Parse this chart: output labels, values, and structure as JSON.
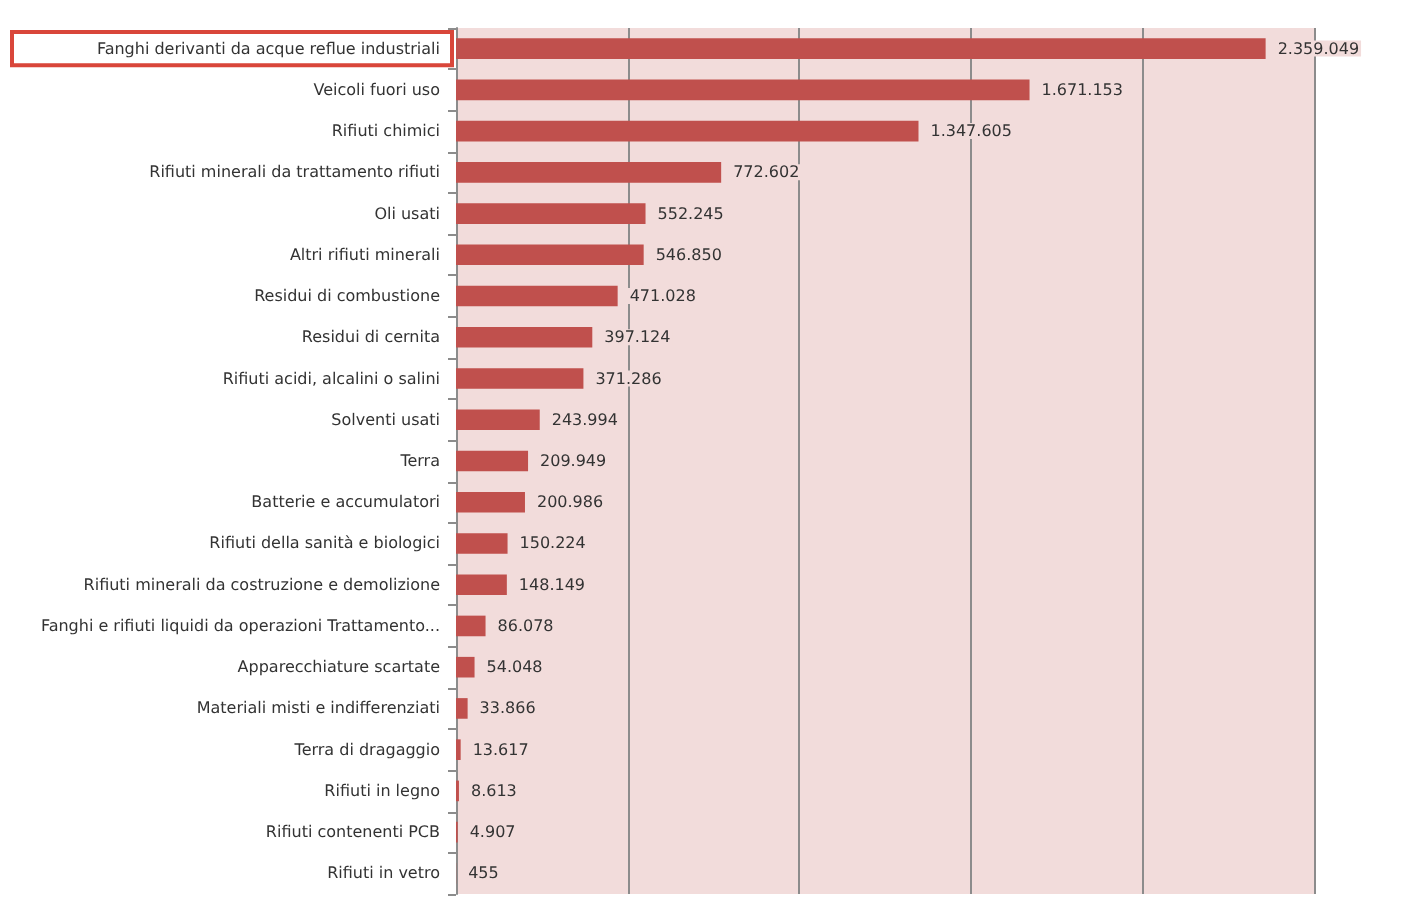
{
  "chart_data": {
    "type": "bar",
    "orientation": "horizontal",
    "categories": [
      "Fanghi derivanti da acque reflue industriali",
      "Veicoli fuori uso",
      "Rifiuti chimici",
      "Rifiuti minerali da trattamento rifiuti",
      "Oli usati",
      "Altri rifiuti minerali",
      "Residui di combustione",
      "Residui di cernita",
      "Rifiuti acidi, alcalini o salini",
      "Solventi usati",
      "Terra",
      "Batterie e accumulatori",
      "Rifiuti della sanità e biologici",
      "Rifiuti minerali da costruzione e demolizione",
      "Fanghi e rifiuti liquidi da operazioni Trattamento...",
      "Apparecchiature scartate",
      "Materiali misti e indifferenziati",
      "Terra di dragaggio",
      "Rifiuti in legno",
      "Rifiuti contenenti PCB",
      "Rifiuti in vetro"
    ],
    "values": [
      2359049,
      1671153,
      1347605,
      772602,
      552245,
      546850,
      471028,
      397124,
      371286,
      243994,
      209949,
      200986,
      150224,
      148149,
      86078,
      54048,
      33866,
      13617,
      8613,
      4907,
      455
    ],
    "value_labels": [
      "2.359.049",
      "1.671.153",
      "1.347.605",
      "772.602",
      "552.245",
      "546.850",
      "471.028",
      "397.124",
      "371.286",
      "243.994",
      "209.949",
      "200.986",
      "150.224",
      "148.149",
      "86.078",
      "54.048",
      "33.866",
      "13.617",
      "8.613",
      "4.907",
      "455"
    ],
    "color": "#c0504d",
    "xlim": [
      0,
      2500000
    ],
    "xticks": [
      {
        "value": 0,
        "label": null
      },
      {
        "value": 500000,
        "label": null
      },
      {
        "value": 1000000,
        "label": null
      },
      {
        "value": 1500000,
        "label": null
      },
      {
        "value": 2000000,
        "label": null
      },
      {
        "value": 2500000,
        "label": null
      }
    ],
    "grid": "x",
    "tick_labels": "y"
  }
}
